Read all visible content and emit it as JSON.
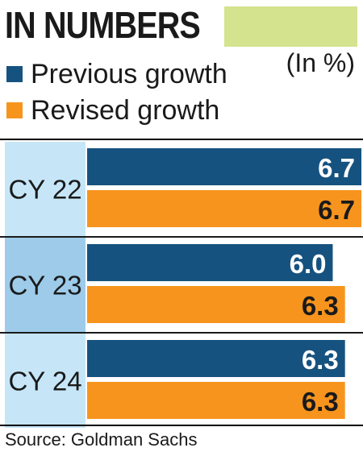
{
  "header": {
    "title": "IN NUMBERS",
    "unit": "(In %)"
  },
  "legend": [
    {
      "label": "Previous growth",
      "color": "#16527f"
    },
    {
      "label": "Revised growth",
      "color": "#f7941e"
    }
  ],
  "chart_data": {
    "type": "bar",
    "orientation": "horizontal",
    "categories": [
      "CY 22",
      "CY 23",
      "CY 24"
    ],
    "series": [
      {
        "name": "Previous growth",
        "color": "#16527f",
        "values": [
          6.7,
          6.0,
          6.3
        ]
      },
      {
        "name": "Revised growth",
        "color": "#f7941e",
        "values": [
          6.7,
          6.3,
          6.3
        ]
      }
    ],
    "data_labels": true,
    "legend_position": "top-left",
    "category_colors": [
      "#c6e6f8",
      "#9dcbe9",
      "#c6e6f8"
    ]
  },
  "footer": {
    "source": "Source: Goldman Sachs"
  }
}
